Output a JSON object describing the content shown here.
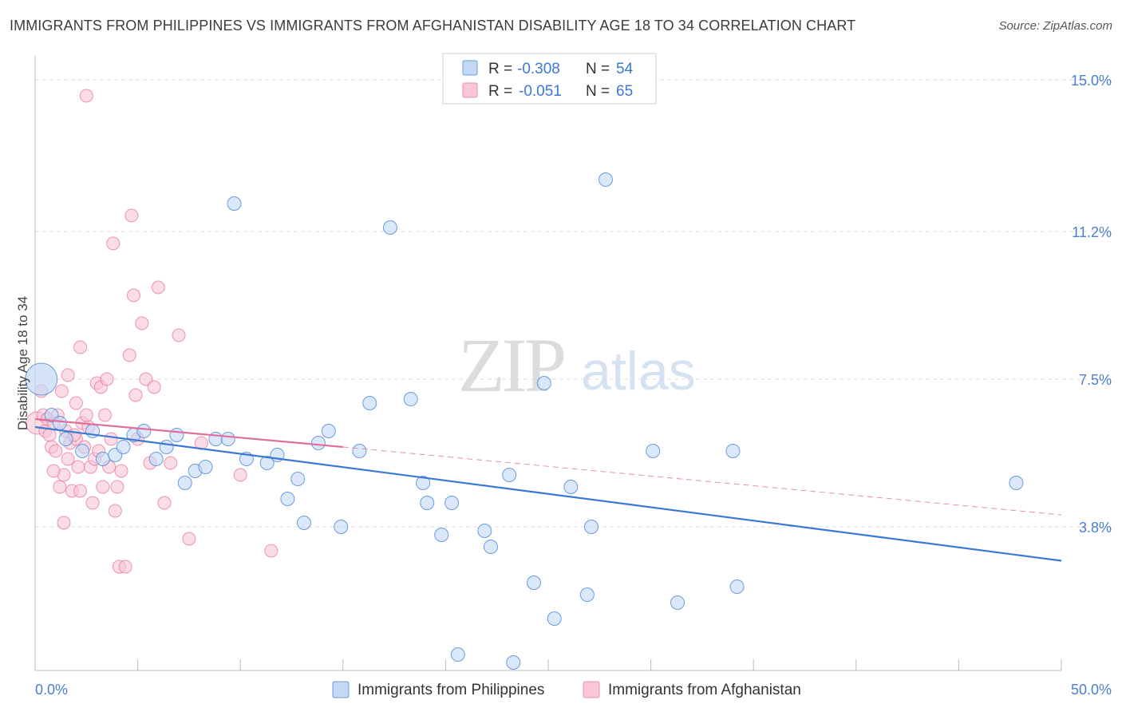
{
  "header": {
    "title": "IMMIGRANTS FROM PHILIPPINES VS IMMIGRANTS FROM AFGHANISTAN DISABILITY AGE 18 TO 34 CORRELATION CHART",
    "source": "Source: ZipAtlas.com"
  },
  "watermark": {
    "zip": "ZIP",
    "atlas": "atlas"
  },
  "colors": {
    "blue": "#4a86d8",
    "blue_fill": "#c3d8f5",
    "blue_line": "#3a78d4",
    "pink": "#e87aa0",
    "pink_fill": "#f8c6d6",
    "pink_line": "#e0709a",
    "tick_label": "#4a7ed0",
    "grid": "#dddddd"
  },
  "chart_data": {
    "type": "scatter",
    "title": "IMMIGRANTS FROM PHILIPPINES VS IMMIGRANTS FROM AFGHANISTAN DISABILITY AGE 18 TO 34 CORRELATION CHART",
    "xlabel": "",
    "ylabel": "Disability Age 18 to 34",
    "xlim": [
      0,
      50
    ],
    "ylim": [
      0.2,
      15.6
    ],
    "x_tick_labels": [
      "0.0%",
      "50.0%"
    ],
    "y_ticks": [
      {
        "value": 15.0,
        "label": "15.0%"
      },
      {
        "value": 11.2,
        "label": "11.2%"
      },
      {
        "value": 7.5,
        "label": "7.5%"
      },
      {
        "value": 3.8,
        "label": "3.8%"
      }
    ],
    "legend_position": "top-center",
    "stats": [
      {
        "r_label": "R =",
        "r_value": "-0.308",
        "n_label": "N =",
        "n_value": "54"
      },
      {
        "r_label": "R =",
        "r_value": "-0.051",
        "n_label": "N =",
        "n_value": "65"
      }
    ],
    "series": [
      {
        "name": "Immigrants from Philippines",
        "color": "#4a86d8",
        "points": [
          {
            "x": 0.3,
            "y": 7.5,
            "big": true
          },
          {
            "x": 0.8,
            "y": 6.6
          },
          {
            "x": 1.2,
            "y": 6.4
          },
          {
            "x": 1.5,
            "y": 6.0
          },
          {
            "x": 2.3,
            "y": 5.7
          },
          {
            "x": 2.8,
            "y": 6.2
          },
          {
            "x": 3.3,
            "y": 5.5
          },
          {
            "x": 3.9,
            "y": 5.6
          },
          {
            "x": 4.3,
            "y": 5.8
          },
          {
            "x": 4.8,
            "y": 6.1
          },
          {
            "x": 5.3,
            "y": 6.2
          },
          {
            "x": 5.9,
            "y": 5.5
          },
          {
            "x": 6.4,
            "y": 5.8
          },
          {
            "x": 6.9,
            "y": 6.1
          },
          {
            "x": 7.3,
            "y": 4.9
          },
          {
            "x": 7.8,
            "y": 5.2
          },
          {
            "x": 8.3,
            "y": 5.3
          },
          {
            "x": 8.8,
            "y": 6.0
          },
          {
            "x": 9.4,
            "y": 6.0
          },
          {
            "x": 9.7,
            "y": 11.9
          },
          {
            "x": 10.3,
            "y": 5.5
          },
          {
            "x": 11.3,
            "y": 5.4
          },
          {
            "x": 11.8,
            "y": 5.6
          },
          {
            "x": 12.3,
            "y": 4.5
          },
          {
            "x": 12.8,
            "y": 5.0
          },
          {
            "x": 13.1,
            "y": 3.9
          },
          {
            "x": 13.8,
            "y": 5.9
          },
          {
            "x": 14.3,
            "y": 6.2
          },
          {
            "x": 14.9,
            "y": 3.8
          },
          {
            "x": 15.8,
            "y": 5.7
          },
          {
            "x": 16.3,
            "y": 6.9
          },
          {
            "x": 17.3,
            "y": 11.3
          },
          {
            "x": 18.3,
            "y": 7.0
          },
          {
            "x": 18.9,
            "y": 4.9
          },
          {
            "x": 19.1,
            "y": 4.4
          },
          {
            "x": 19.8,
            "y": 3.6
          },
          {
            "x": 20.3,
            "y": 4.4
          },
          {
            "x": 20.6,
            "y": 0.6
          },
          {
            "x": 21.9,
            "y": 3.7
          },
          {
            "x": 22.2,
            "y": 3.3
          },
          {
            "x": 23.1,
            "y": 5.1
          },
          {
            "x": 23.3,
            "y": 0.4
          },
          {
            "x": 24.3,
            "y": 2.4
          },
          {
            "x": 24.8,
            "y": 7.4
          },
          {
            "x": 25.3,
            "y": 1.5
          },
          {
            "x": 26.1,
            "y": 4.8
          },
          {
            "x": 26.9,
            "y": 2.1
          },
          {
            "x": 27.8,
            "y": 12.5
          },
          {
            "x": 27.1,
            "y": 3.8
          },
          {
            "x": 30.1,
            "y": 5.7
          },
          {
            "x": 31.3,
            "y": 1.9
          },
          {
            "x": 34.0,
            "y": 5.7
          },
          {
            "x": 34.2,
            "y": 2.3
          },
          {
            "x": 47.8,
            "y": 4.9
          }
        ],
        "trend": {
          "x0": 0,
          "y0": 6.3,
          "x1": 50,
          "y1": 2.95
        }
      },
      {
        "name": "Immigrants from Afghanistan",
        "color": "#e87aa0",
        "points": [
          {
            "x": 0.1,
            "y": 6.4,
            "big": true
          },
          {
            "x": 0.3,
            "y": 7.2
          },
          {
            "x": 0.4,
            "y": 6.6
          },
          {
            "x": 0.5,
            "y": 6.2
          },
          {
            "x": 0.6,
            "y": 6.5
          },
          {
            "x": 0.7,
            "y": 6.1
          },
          {
            "x": 0.8,
            "y": 5.8
          },
          {
            "x": 0.9,
            "y": 6.4
          },
          {
            "x": 1.0,
            "y": 5.7
          },
          {
            "x": 1.1,
            "y": 6.6
          },
          {
            "x": 1.2,
            "y": 4.8
          },
          {
            "x": 1.3,
            "y": 7.2
          },
          {
            "x": 1.4,
            "y": 5.1
          },
          {
            "x": 1.5,
            "y": 6.2
          },
          {
            "x": 1.6,
            "y": 7.6
          },
          {
            "x": 1.7,
            "y": 5.9
          },
          {
            "x": 1.8,
            "y": 4.7
          },
          {
            "x": 1.4,
            "y": 3.9
          },
          {
            "x": 2.0,
            "y": 6.0
          },
          {
            "x": 2.1,
            "y": 5.3
          },
          {
            "x": 2.2,
            "y": 8.3
          },
          {
            "x": 2.3,
            "y": 6.4
          },
          {
            "x": 2.4,
            "y": 5.8
          },
          {
            "x": 2.6,
            "y": 6.3
          },
          {
            "x": 2.7,
            "y": 5.3
          },
          {
            "x": 2.2,
            "y": 4.7
          },
          {
            "x": 3.0,
            "y": 7.4
          },
          {
            "x": 3.2,
            "y": 7.3
          },
          {
            "x": 2.5,
            "y": 14.6
          },
          {
            "x": 3.3,
            "y": 4.8
          },
          {
            "x": 3.4,
            "y": 6.6
          },
          {
            "x": 2.9,
            "y": 5.5
          },
          {
            "x": 3.5,
            "y": 7.5
          },
          {
            "x": 3.6,
            "y": 5.3
          },
          {
            "x": 3.8,
            "y": 10.9
          },
          {
            "x": 3.9,
            "y": 4.2
          },
          {
            "x": 4.0,
            "y": 4.8
          },
          {
            "x": 4.1,
            "y": 2.8
          },
          {
            "x": 4.2,
            "y": 5.2
          },
          {
            "x": 4.4,
            "y": 2.8
          },
          {
            "x": 4.6,
            "y": 8.1
          },
          {
            "x": 4.7,
            "y": 11.6
          },
          {
            "x": 4.8,
            "y": 9.6
          },
          {
            "x": 4.9,
            "y": 7.1
          },
          {
            "x": 5.0,
            "y": 6.0
          },
          {
            "x": 5.2,
            "y": 8.9
          },
          {
            "x": 5.4,
            "y": 7.5
          },
          {
            "x": 5.6,
            "y": 5.4
          },
          {
            "x": 5.8,
            "y": 7.3
          },
          {
            "x": 6.0,
            "y": 9.8
          },
          {
            "x": 6.3,
            "y": 4.4
          },
          {
            "x": 6.6,
            "y": 5.4
          },
          {
            "x": 7.0,
            "y": 8.6
          },
          {
            "x": 7.5,
            "y": 3.5
          },
          {
            "x": 8.1,
            "y": 5.9
          },
          {
            "x": 10.0,
            "y": 5.1
          },
          {
            "x": 11.5,
            "y": 3.2
          },
          {
            "x": 2.0,
            "y": 6.9
          },
          {
            "x": 2.8,
            "y": 4.4
          },
          {
            "x": 3.1,
            "y": 5.7
          },
          {
            "x": 1.9,
            "y": 6.1
          },
          {
            "x": 0.9,
            "y": 5.2
          },
          {
            "x": 1.6,
            "y": 5.5
          },
          {
            "x": 3.7,
            "y": 6.0
          },
          {
            "x": 2.5,
            "y": 6.6
          }
        ],
        "trend_solid": {
          "x0": 0,
          "y0": 6.5,
          "x1": 15,
          "y1": 5.8
        },
        "trend_dashed": {
          "x0": 15,
          "y0": 5.8,
          "x1": 50,
          "y1": 4.1
        }
      }
    ]
  }
}
